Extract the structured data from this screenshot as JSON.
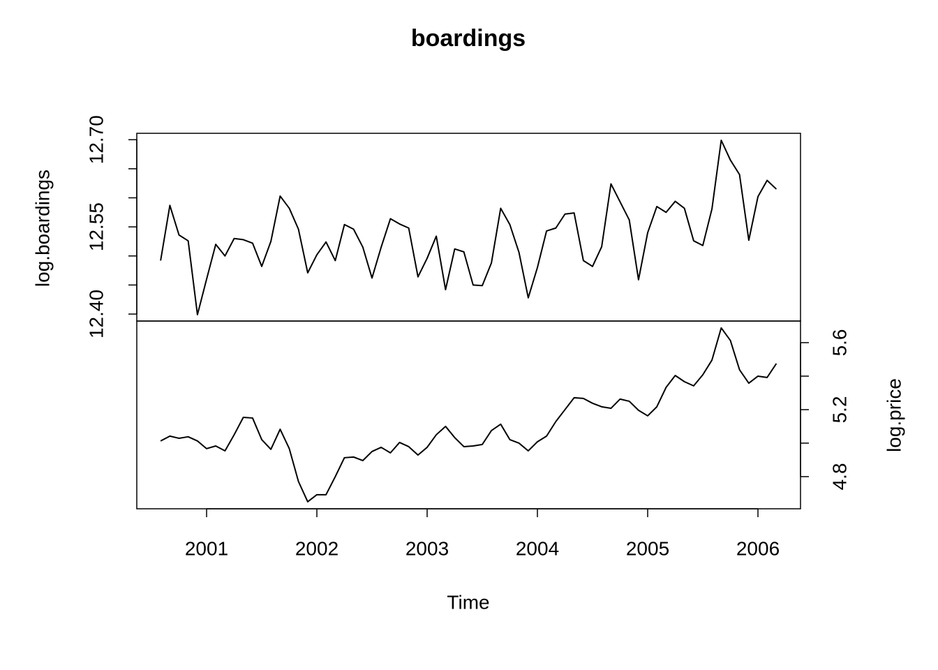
{
  "chart_data": {
    "type": "line",
    "title": "boardings",
    "x_label": "Time",
    "x": [
      2000.583,
      2000.667,
      2000.75,
      2000.833,
      2000.917,
      2001,
      2001.083,
      2001.167,
      2001.25,
      2001.333,
      2001.417,
      2001.5,
      2001.583,
      2001.667,
      2001.75,
      2001.833,
      2001.917,
      2002,
      2002.083,
      2002.167,
      2002.25,
      2002.333,
      2002.417,
      2002.5,
      2002.583,
      2002.667,
      2002.75,
      2002.833,
      2002.917,
      2003,
      2003.083,
      2003.167,
      2003.25,
      2003.333,
      2003.417,
      2003.5,
      2003.583,
      2003.667,
      2003.75,
      2003.833,
      2003.917,
      2004,
      2004.083,
      2004.167,
      2004.25,
      2004.333,
      2004.417,
      2004.5,
      2004.583,
      2004.667,
      2004.75,
      2004.833,
      2004.917,
      2005,
      2005.083,
      2005.167,
      2005.25,
      2005.333,
      2005.417,
      2005.5,
      2005.583,
      2005.667,
      2005.75,
      2005.833,
      2005.917,
      2006,
      2006.083,
      2006.167
    ],
    "xlim": [
      2000.367,
      2006.386
    ],
    "xticks": [
      2001,
      2002,
      2003,
      2004,
      2005,
      2006
    ],
    "ylim": [
      12.388,
      12.711
    ],
    "yticks": [
      {
        "value": 12.4,
        "label": "12.40"
      },
      {
        "value": 12.45,
        "label": null
      },
      {
        "value": 12.5,
        "label": null
      },
      12.55,
      {
        "value": 12.6,
        "label": null
      },
      {
        "value": 12.65,
        "label": null
      },
      {
        "value": 12.7,
        "label": "12.70"
      }
    ],
    "y2lim": [
      4.608,
      5.729
    ],
    "y2ticks": [
      4.8,
      {
        "value": 5.0,
        "label": null
      },
      5.2,
      {
        "value": 5.4,
        "label": null
      },
      5.6
    ],
    "series": [
      {
        "name": "log.boardings",
        "color": "#000000",
        "values": [
          12.492,
          12.587,
          12.536,
          12.526,
          12.399,
          12.46,
          12.52,
          12.5,
          12.53,
          12.528,
          12.522,
          12.482,
          12.525,
          12.603,
          12.582,
          12.546,
          12.471,
          12.502,
          12.524,
          12.492,
          12.554,
          12.546,
          12.515,
          12.462,
          12.515,
          12.564,
          12.555,
          12.548,
          12.464,
          12.496,
          12.534,
          12.442,
          12.512,
          12.507,
          12.45,
          12.449,
          12.488,
          12.582,
          12.554,
          12.506,
          12.428,
          12.48,
          12.543,
          12.548,
          12.572,
          12.574,
          12.492,
          12.482,
          12.516,
          12.624,
          12.593,
          12.562,
          12.459,
          12.54,
          12.585,
          12.575,
          12.594,
          12.582,
          12.526,
          12.518,
          12.581,
          12.699,
          12.665,
          12.64,
          12.527,
          12.602,
          12.63,
          12.615
        ]
      },
      {
        "name": "log.price",
        "color": "#000000",
        "axis": "y2",
        "values": [
          5.013,
          5.042,
          5.029,
          5.038,
          5.013,
          4.967,
          4.983,
          4.954,
          5.05,
          5.154,
          5.15,
          5.021,
          4.963,
          5.083,
          4.967,
          4.771,
          4.65,
          4.692,
          4.692,
          4.8,
          4.913,
          4.917,
          4.896,
          4.95,
          4.975,
          4.942,
          5.004,
          4.979,
          4.929,
          4.975,
          5.05,
          5.1,
          5.033,
          4.979,
          4.983,
          4.992,
          5.075,
          5.113,
          5.021,
          5.0,
          4.954,
          5.008,
          5.042,
          5.129,
          5.2,
          5.271,
          5.267,
          5.238,
          5.217,
          5.208,
          5.263,
          5.25,
          5.196,
          5.163,
          5.217,
          5.333,
          5.404,
          5.367,
          5.342,
          5.408,
          5.496,
          5.688,
          5.613,
          5.438,
          5.358,
          5.4,
          5.392,
          5.475
        ]
      }
    ]
  }
}
